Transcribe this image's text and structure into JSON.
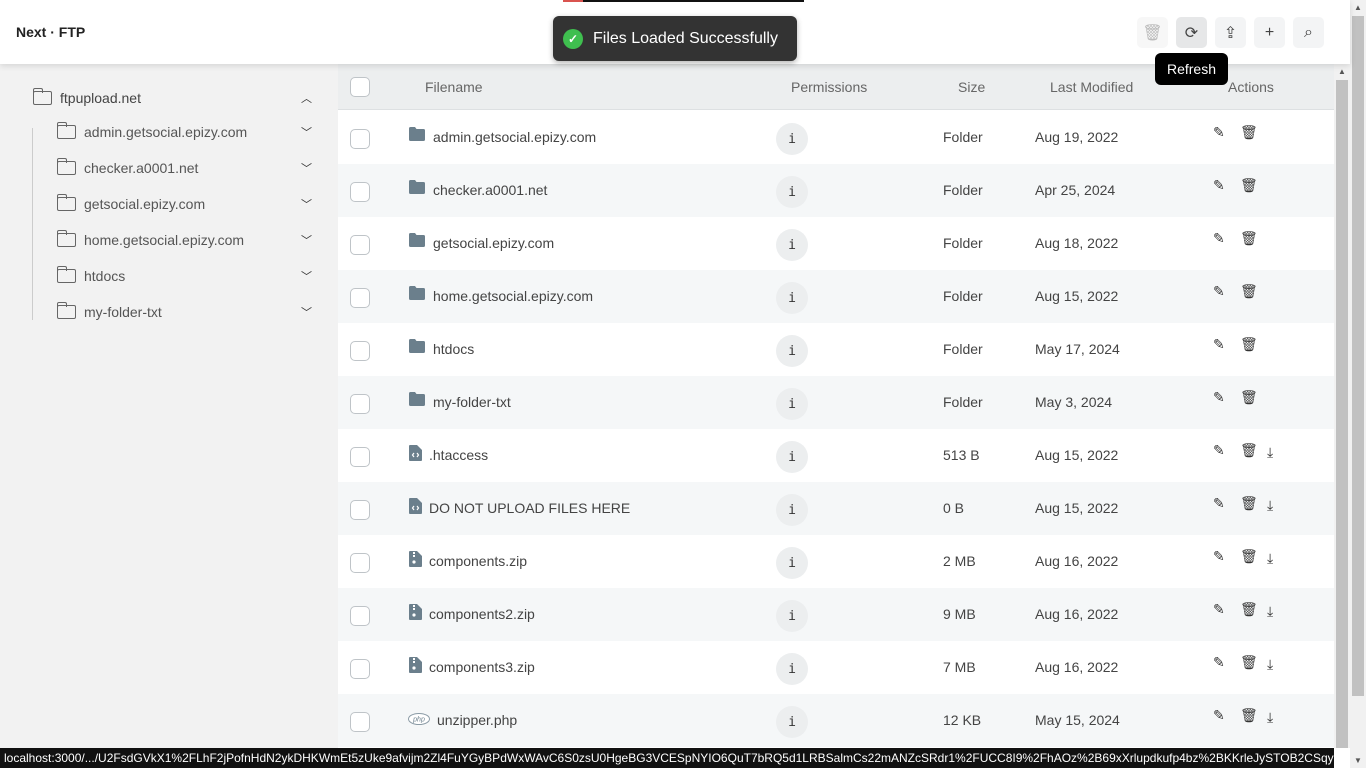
{
  "header": {
    "title": "Next · FTP",
    "toolbar": [
      {
        "name": "delete",
        "icon": "trash-icon",
        "glyph": "🗑",
        "state": "disabled"
      },
      {
        "name": "refresh",
        "icon": "refresh-icon",
        "glyph": "⟳",
        "state": "active"
      },
      {
        "name": "upload",
        "icon": "upload-icon",
        "glyph": "⇪",
        "state": "normal"
      },
      {
        "name": "add",
        "icon": "plus-icon",
        "glyph": "+",
        "state": "normal"
      },
      {
        "name": "search",
        "icon": "search-icon",
        "glyph": "⌕",
        "state": "normal"
      }
    ],
    "tooltip": "Refresh"
  },
  "toast": {
    "message": "Files Loaded Successfully",
    "icon": "check-circle-icon",
    "color": "#3fbf4f"
  },
  "sidebar": {
    "root": "ftpupload.net",
    "items": [
      "admin.getsocial.epizy.com",
      "checker.a0001.net",
      "getsocial.epizy.com",
      "home.getsocial.epizy.com",
      "htdocs",
      "my-folder-txt"
    ]
  },
  "table": {
    "columns": {
      "filename": "Filename",
      "permissions": "Permissions",
      "size": "Size",
      "modified": "Last Modified",
      "actions": "Actions"
    },
    "rows": [
      {
        "name": "admin.getsocial.epizy.com",
        "type": "folder",
        "size": "Folder",
        "date": "Aug 19, 2022"
      },
      {
        "name": "checker.a0001.net",
        "type": "folder",
        "size": "Folder",
        "date": "Apr 25, 2024"
      },
      {
        "name": "getsocial.epizy.com",
        "type": "folder",
        "size": "Folder",
        "date": "Aug 18, 2022"
      },
      {
        "name": "home.getsocial.epizy.com",
        "type": "folder",
        "size": "Folder",
        "date": "Aug 15, 2022"
      },
      {
        "name": "htdocs",
        "type": "folder",
        "size": "Folder",
        "date": "May 17, 2024"
      },
      {
        "name": "my-folder-txt",
        "type": "folder",
        "size": "Folder",
        "date": "May 3, 2024"
      },
      {
        "name": ".htaccess",
        "type": "code",
        "size": "513 B",
        "date": "Aug 15, 2022"
      },
      {
        "name": "DO NOT UPLOAD FILES HERE",
        "type": "code",
        "size": "0 B",
        "date": "Aug 15, 2022"
      },
      {
        "name": "components.zip",
        "type": "zip",
        "size": "2 MB",
        "date": "Aug 16, 2022"
      },
      {
        "name": "components2.zip",
        "type": "zip",
        "size": "9 MB",
        "date": "Aug 16, 2022"
      },
      {
        "name": "components3.zip",
        "type": "zip",
        "size": "7 MB",
        "date": "Aug 16, 2022"
      },
      {
        "name": "unzipper.php",
        "type": "php",
        "size": "12 KB",
        "date": "May 15, 2024"
      }
    ],
    "info_label": "i"
  },
  "status_url": "localhost:3000/.../U2FsdGVkX1%2FLhF2jPofnHdN2ykDHKWmEt5zUke9afvijm2Zl4FuYGyBPdWxWAvC6S0zsU0HgeBG3VCESpNYIO6QuT7bRQ5d1LRBSalmCs22mANZcSRdr1%2FUCC8I9%2FhAOz%2B69xXrlupdkufp4bz%2BKKrleJySTOB2CSqyPn7SaBtE%..."
}
